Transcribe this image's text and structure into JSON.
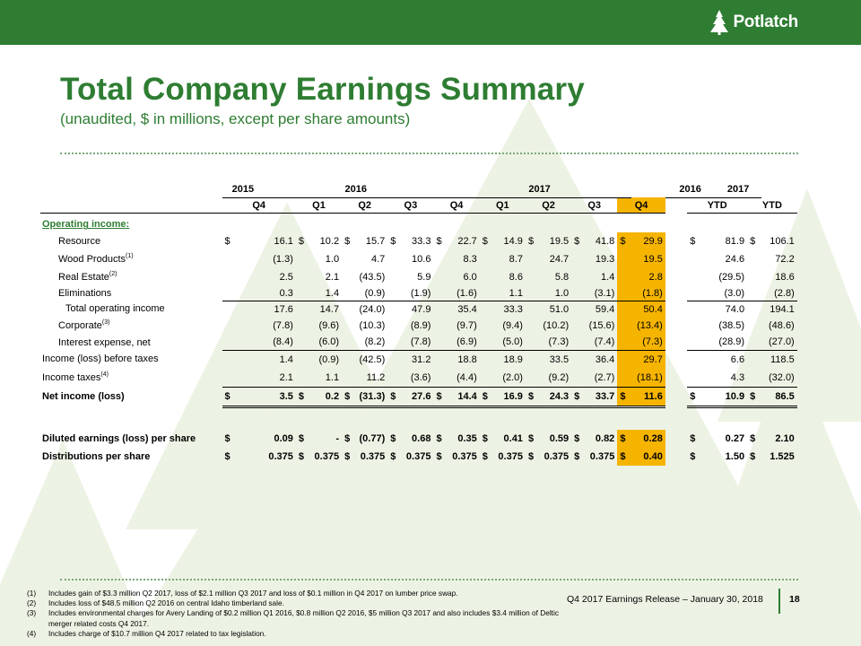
{
  "brand": {
    "name": "Potlatch",
    "color": "#2e7d32",
    "highlight": "#f5b400"
  },
  "title": "Total Company Earnings Summary",
  "subtitle": "(unaudited, $ in millions, except per share amounts)",
  "header": {
    "years": [
      "2015",
      "2016",
      "2017",
      "2016",
      "2017"
    ],
    "periods": [
      "Q4",
      "Q1",
      "Q2",
      "Q3",
      "Q4",
      "Q1",
      "Q2",
      "Q3",
      "Q4",
      "YTD",
      "YTD"
    ]
  },
  "section_label": "Operating income:",
  "rows": [
    {
      "label": "Resource",
      "vals": [
        "16.1",
        "10.2",
        "15.7",
        "33.3",
        "22.7",
        "14.9",
        "19.5",
        "41.8",
        "29.9",
        "81.9",
        "106.1"
      ]
    },
    {
      "label": "Wood Products",
      "sup": "(1)",
      "vals": [
        "(1.3)",
        "1.0",
        "4.7",
        "10.6",
        "8.3",
        "8.7",
        "24.7",
        "19.3",
        "19.5",
        "24.6",
        "72.2"
      ]
    },
    {
      "label": "Real Estate",
      "sup": "(2)",
      "vals": [
        "2.5",
        "2.1",
        "(43.5)",
        "5.9",
        "6.0",
        "8.6",
        "5.8",
        "1.4",
        "2.8",
        "(29.5)",
        "18.6"
      ]
    },
    {
      "label": "Eliminations",
      "vals": [
        "0.3",
        "1.4",
        "(0.9)",
        "(1.9)",
        "(1.6)",
        "1.1",
        "1.0",
        "(3.1)",
        "(1.8)",
        "(3.0)",
        "(2.8)"
      ]
    },
    {
      "label": "Total operating income",
      "vals": [
        "17.6",
        "14.7",
        "(24.0)",
        "47.9",
        "35.4",
        "33.3",
        "51.0",
        "59.4",
        "50.4",
        "74.0",
        "194.1"
      ]
    },
    {
      "label": "Corporate",
      "sup": "(3)",
      "vals": [
        "(7.8)",
        "(9.6)",
        "(10.3)",
        "(8.9)",
        "(9.7)",
        "(9.4)",
        "(10.2)",
        "(15.6)",
        "(13.4)",
        "(38.5)",
        "(48.6)"
      ]
    },
    {
      "label": "Interest expense, net",
      "vals": [
        "(8.4)",
        "(6.0)",
        "(8.2)",
        "(7.8)",
        "(6.9)",
        "(5.0)",
        "(7.3)",
        "(7.4)",
        "(7.3)",
        "(28.9)",
        "(27.0)"
      ]
    },
    {
      "label": "Income (loss) before taxes",
      "vals": [
        "1.4",
        "(0.9)",
        "(42.5)",
        "31.2",
        "18.8",
        "18.9",
        "33.5",
        "36.4",
        "29.7",
        "6.6",
        "118.5"
      ]
    },
    {
      "label": "Income taxes",
      "sup": "(4)",
      "vals": [
        "2.1",
        "1.1",
        "11.2",
        "(3.6)",
        "(4.4)",
        "(2.0)",
        "(9.2)",
        "(2.7)",
        "(18.1)",
        "4.3",
        "(32.0)"
      ]
    },
    {
      "label": "Net income (loss)",
      "vals": [
        "3.5",
        "0.2",
        "(31.3)",
        "27.6",
        "14.4",
        "16.9",
        "24.3",
        "33.7",
        "11.6",
        "10.9",
        "86.5"
      ]
    },
    {
      "label": "Diluted earnings (loss) per share",
      "vals": [
        "0.09",
        "-",
        "(0.77)",
        "0.68",
        "0.35",
        "0.41",
        "0.59",
        "0.82",
        "0.28",
        "0.27",
        "2.10"
      ]
    },
    {
      "label": "Distributions per share",
      "vals": [
        "0.375",
        "0.375",
        "0.375",
        "0.375",
        "0.375",
        "0.375",
        "0.375",
        "0.375",
        "0.40",
        "1.50",
        "1.525"
      ]
    }
  ],
  "currency_symbol": "$",
  "footnotes": [
    {
      "num": "(1)",
      "text": "Includes gain of $3.3 million Q2 2017, loss of $2.1 million Q3 2017 and loss of $0.1 million in Q4 2017 on lumber price swap."
    },
    {
      "num": "(2)",
      "text": "Includes loss of $48.5 million Q2 2016 on central Idaho timberland sale."
    },
    {
      "num": "(3)",
      "text": "Includes environmental charges for Avery Landing of $0.2 million Q1 2016, $0.8 million Q2 2016, $5 million Q3 2017 and also includes $3.4 million of Deltic merger related costs Q4 2017."
    },
    {
      "num": "(4)",
      "text": "Includes charge of $10.7 million Q4 2017 related to tax legislation."
    }
  ],
  "footer": {
    "release": "Q4 2017 Earnings Release – January 30, 2018",
    "page": "18"
  }
}
